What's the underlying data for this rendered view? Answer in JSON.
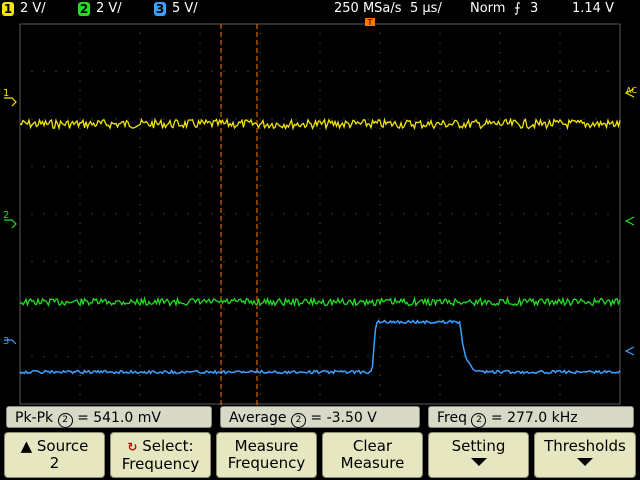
{
  "header": {
    "channels": [
      {
        "num": "1",
        "scale": "2 V/",
        "color": "#f2e600"
      },
      {
        "num": "2",
        "scale": "2 V/",
        "color": "#22dd22"
      },
      {
        "num": "3",
        "scale": "5 V/",
        "color": "#3aa0ff"
      }
    ],
    "sample_rate": "250 MSa/s",
    "timebase": "5 µs/",
    "trigger_mode": "Norm",
    "trigger_source": "3",
    "trigger_level": "1.14 V"
  },
  "markers": {
    "ch1": "1",
    "ch2": "2",
    "ch3": "3",
    "t": "T",
    "ac_label": "AC"
  },
  "measurements": [
    {
      "label": "Pk-Pk",
      "channel": "2",
      "value": "= 541.0 mV"
    },
    {
      "label": "Average",
      "channel": "2",
      "value": "= -3.50  V"
    },
    {
      "label": "Freq",
      "channel": "2",
      "value": "= 277.0 kHz"
    }
  ],
  "softkeys": [
    {
      "line1": "Source",
      "line2": "2"
    },
    {
      "line1": "Select:",
      "line2": "Frequency"
    },
    {
      "line1": "Measure",
      "line2": "Frequency"
    },
    {
      "line1": "Clear",
      "line2": "Measure"
    },
    {
      "line1": "Setting",
      "line2": ""
    },
    {
      "line1": "Thresholds",
      "line2": ""
    }
  ],
  "colors": {
    "ch1": "#f2e600",
    "ch2": "#22dd22",
    "ch3": "#3aa0ff",
    "cursor": "#ff7a00",
    "grid": "#4a4a4a",
    "softkey_bg": "#e6e6c0"
  }
}
